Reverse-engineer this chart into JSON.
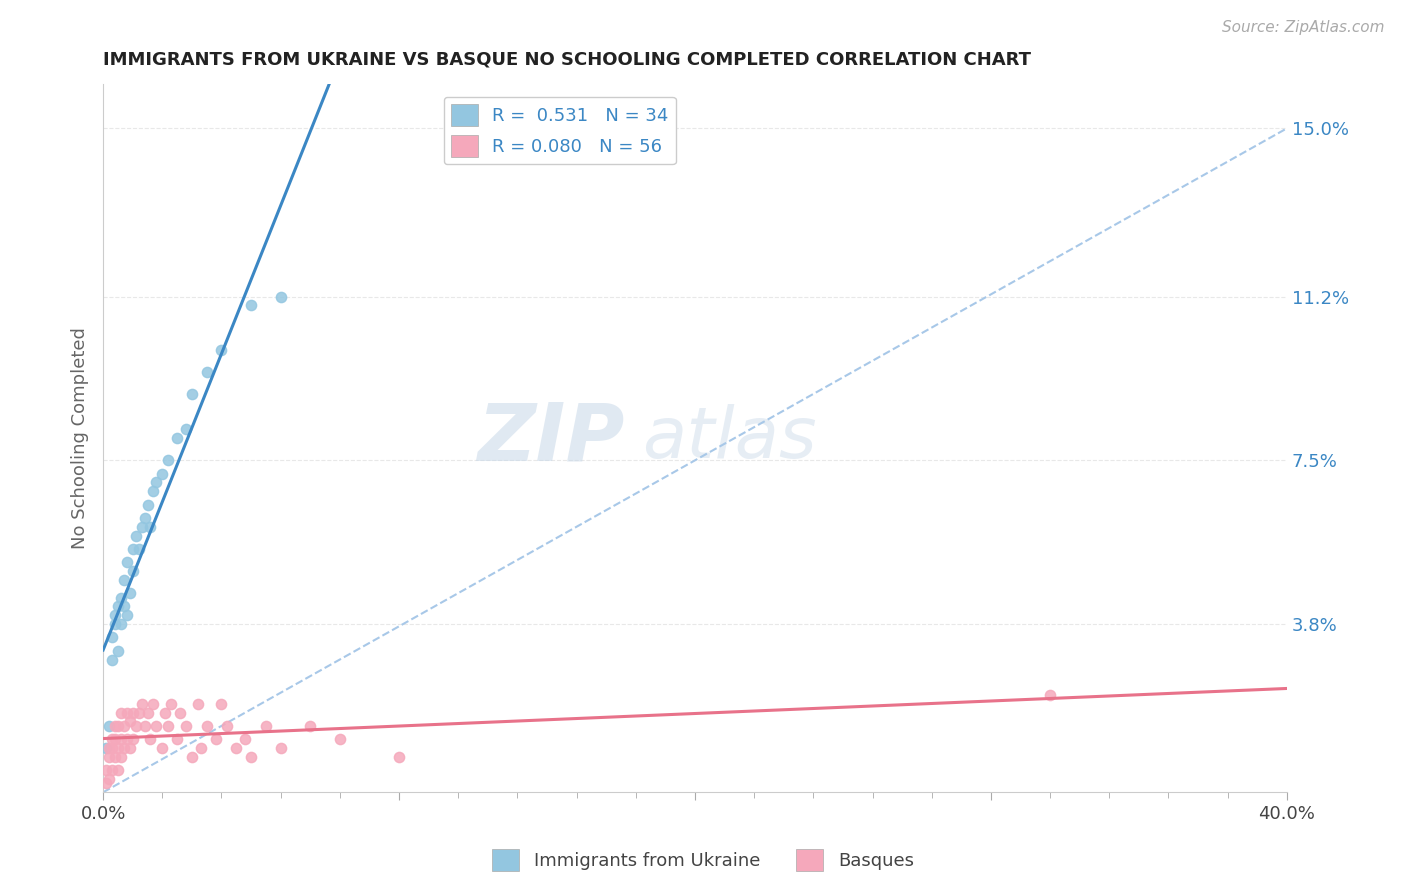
{
  "title": "IMMIGRANTS FROM UKRAINE VS BASQUE NO SCHOOLING COMPLETED CORRELATION CHART",
  "source": "Source: ZipAtlas.com",
  "ylabel": "No Schooling Completed",
  "xlim": [
    0.0,
    0.4
  ],
  "ylim": [
    0.0,
    0.16
  ],
  "yticks_right": [
    0.0,
    0.038,
    0.075,
    0.112,
    0.15
  ],
  "ytick_labels_right": [
    "",
    "3.8%",
    "7.5%",
    "11.2%",
    "15.0%"
  ],
  "ukraine_color": "#93c6e0",
  "basque_color": "#f5a8bb",
  "ukraine_line_color": "#3b87c4",
  "basque_line_color": "#e8728a",
  "trendline_dashed_color": "#a8c8e8",
  "legend_R_ukraine": "0.531",
  "legend_N_ukraine": "34",
  "legend_R_basque": "0.080",
  "legend_N_basque": "56",
  "watermark_zip": "ZIP",
  "watermark_atlas": "atlas",
  "legend_label_ukraine": "Immigrants from Ukraine",
  "legend_label_basque": "Basques",
  "background_color": "#ffffff",
  "grid_color": "#e8e8e8",
  "ukraine_x": [
    0.001,
    0.002,
    0.003,
    0.003,
    0.004,
    0.004,
    0.005,
    0.005,
    0.006,
    0.006,
    0.007,
    0.007,
    0.008,
    0.008,
    0.009,
    0.01,
    0.01,
    0.011,
    0.012,
    0.013,
    0.014,
    0.015,
    0.016,
    0.017,
    0.018,
    0.02,
    0.022,
    0.025,
    0.028,
    0.03,
    0.035,
    0.04,
    0.05,
    0.06
  ],
  "ukraine_y": [
    0.01,
    0.015,
    0.03,
    0.035,
    0.038,
    0.04,
    0.032,
    0.042,
    0.038,
    0.044,
    0.042,
    0.048,
    0.04,
    0.052,
    0.045,
    0.05,
    0.055,
    0.058,
    0.055,
    0.06,
    0.062,
    0.065,
    0.06,
    0.068,
    0.07,
    0.072,
    0.075,
    0.08,
    0.082,
    0.09,
    0.095,
    0.1,
    0.11,
    0.112
  ],
  "basque_x": [
    0.001,
    0.001,
    0.002,
    0.002,
    0.002,
    0.003,
    0.003,
    0.003,
    0.004,
    0.004,
    0.004,
    0.005,
    0.005,
    0.005,
    0.006,
    0.006,
    0.006,
    0.007,
    0.007,
    0.008,
    0.008,
    0.009,
    0.009,
    0.01,
    0.01,
    0.011,
    0.012,
    0.013,
    0.014,
    0.015,
    0.016,
    0.017,
    0.018,
    0.02,
    0.021,
    0.022,
    0.023,
    0.025,
    0.026,
    0.028,
    0.03,
    0.032,
    0.033,
    0.035,
    0.038,
    0.04,
    0.042,
    0.045,
    0.048,
    0.05,
    0.055,
    0.06,
    0.07,
    0.08,
    0.1,
    0.32
  ],
  "basque_y": [
    0.002,
    0.005,
    0.003,
    0.008,
    0.01,
    0.005,
    0.01,
    0.012,
    0.008,
    0.012,
    0.015,
    0.005,
    0.01,
    0.015,
    0.008,
    0.012,
    0.018,
    0.01,
    0.015,
    0.012,
    0.018,
    0.01,
    0.016,
    0.012,
    0.018,
    0.015,
    0.018,
    0.02,
    0.015,
    0.018,
    0.012,
    0.02,
    0.015,
    0.01,
    0.018,
    0.015,
    0.02,
    0.012,
    0.018,
    0.015,
    0.008,
    0.02,
    0.01,
    0.015,
    0.012,
    0.02,
    0.015,
    0.01,
    0.012,
    0.008,
    0.015,
    0.01,
    0.015,
    0.012,
    0.008,
    0.022
  ]
}
